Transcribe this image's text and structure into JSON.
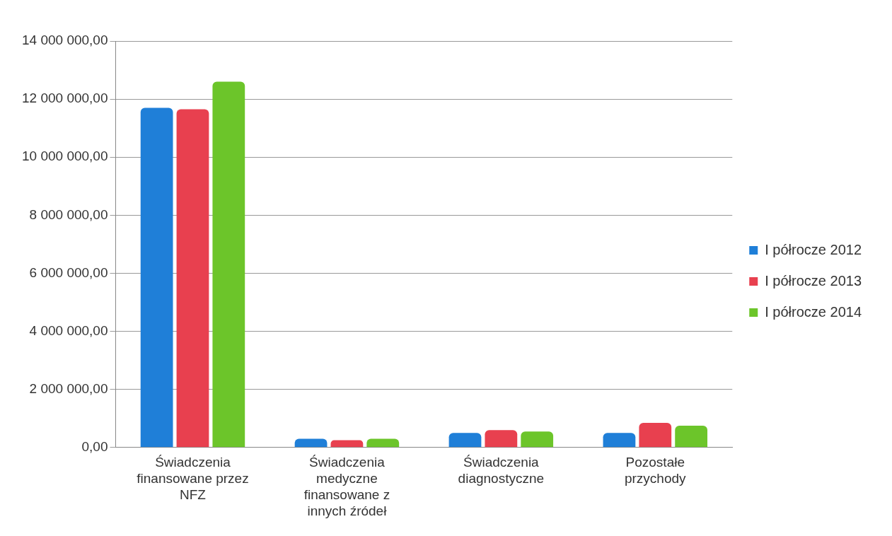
{
  "chart_data": {
    "type": "bar",
    "categories": [
      "Świadczenia finansowane przez NFZ",
      "Świadczenia medyczne finansowane z innych źródeł",
      "Świadczenia diagnostyczne",
      "Pozostałe przychody"
    ],
    "series": [
      {
        "name": "I półrocze 2012",
        "color": "#1f7fd8",
        "values": [
          11700000,
          300000,
          500000,
          500000
        ]
      },
      {
        "name": "I półrocze 2013",
        "color": "#e8404f",
        "values": [
          11650000,
          250000,
          600000,
          850000
        ]
      },
      {
        "name": "I półrocze 2014",
        "color": "#6cc52a",
        "values": [
          12600000,
          300000,
          550000,
          750000
        ]
      }
    ],
    "ylim": [
      0,
      14000000
    ],
    "yticks": [
      {
        "value": 0,
        "label": "0,00"
      },
      {
        "value": 2000000,
        "label": "2 000 000,00"
      },
      {
        "value": 4000000,
        "label": "4 000 000,00"
      },
      {
        "value": 6000000,
        "label": "6 000 000,00"
      },
      {
        "value": 8000000,
        "label": "8 000 000,00"
      },
      {
        "value": 10000000,
        "label": "10 000 000,00"
      },
      {
        "value": 12000000,
        "label": "12 000 000,00"
      },
      {
        "value": 14000000,
        "label": "14 000 000,00"
      }
    ],
    "grid": "y",
    "legend": "right"
  }
}
